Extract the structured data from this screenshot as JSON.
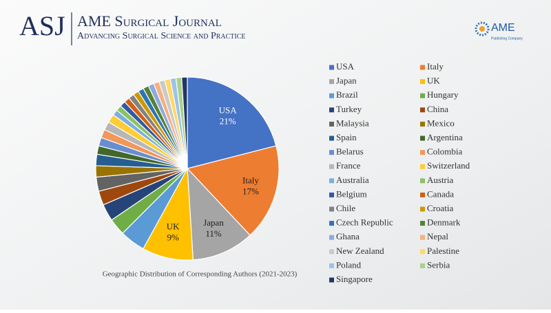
{
  "header": {
    "logo": "ASJ",
    "title": "AME Surgical Journal",
    "subtitle": "Advancing Surgical Science and Practice"
  },
  "publisher": {
    "name": "AME",
    "tagline": "Publishing Company"
  },
  "chart_data": {
    "type": "pie",
    "title": "Geographic Distribution of Corresponding Authors (2021-2023)",
    "categories": [
      "USA",
      "Italy",
      "Japan",
      "UK",
      "Brazil",
      "Hungary",
      "Turkey",
      "China",
      "Malaysia",
      "Mexico",
      "Spain",
      "Argentina",
      "Belarus",
      "Colombia",
      "France",
      "Switzerland",
      "Australia",
      "Austria",
      "Belgium",
      "Canada",
      "Chile",
      "Croatia",
      "Czech Republic",
      "Denmark",
      "Ghana",
      "Nepal",
      "New Zealand",
      "Palestine",
      "Poland",
      "Serbia",
      "Singapore"
    ],
    "values": [
      21,
      17,
      11,
      9,
      4.5,
      3,
      3,
      2.5,
      2.5,
      2,
      2,
      1.5,
      1.5,
      1.5,
      1.5,
      1.5,
      1,
      1,
      1,
      1,
      1,
      1,
      1,
      1,
      1,
      1,
      1,
      1,
      1,
      1,
      1
    ],
    "value_labels": [
      "21%",
      "17%",
      "11%",
      "9%",
      null,
      null,
      null,
      null,
      null,
      null,
      null,
      null,
      null,
      null,
      null,
      null,
      null,
      null,
      null,
      null,
      null,
      null,
      null,
      null,
      null,
      null,
      null,
      null,
      null,
      null,
      null
    ],
    "colors": [
      "#4472c4",
      "#ed7d31",
      "#a5a5a5",
      "#ffc000",
      "#5b9bd5",
      "#70ad47",
      "#264478",
      "#9e480e",
      "#636363",
      "#997300",
      "#255e91",
      "#43682b",
      "#698ed0",
      "#f1975a",
      "#b7b7b7",
      "#ffcd33",
      "#7cafdd",
      "#8cc168",
      "#335aa1",
      "#d26012",
      "#828282",
      "#cc9a00",
      "#2e75b6",
      "#548235",
      "#8faadc",
      "#f4b183",
      "#c9c9c9",
      "#ffd966",
      "#9dc3e6",
      "#a9d18e",
      "#203864"
    ],
    "legend": "right"
  }
}
